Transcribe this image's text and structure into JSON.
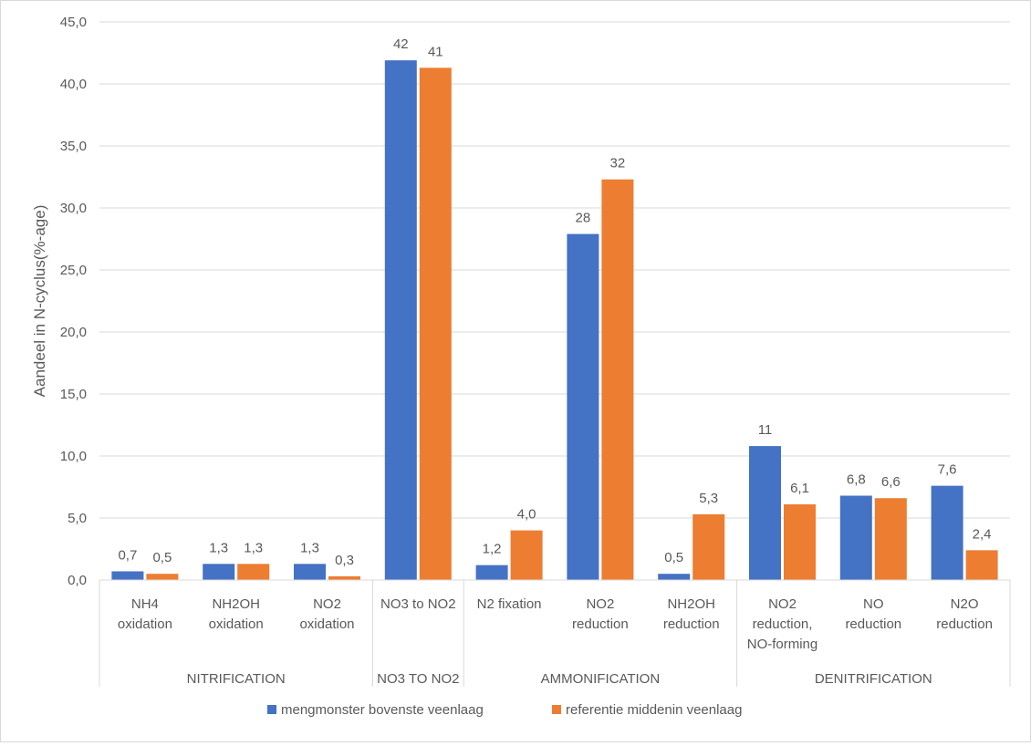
{
  "chart_data": {
    "type": "bar",
    "ylabel": "Aandeel in N-cyclus(%-age)",
    "xlabel": "",
    "ylim": [
      0,
      45
    ],
    "ytick_step": 5,
    "yticks": [
      "0,0",
      "5,0",
      "10,0",
      "15,0",
      "20,0",
      "25,0",
      "30,0",
      "35,0",
      "40,0",
      "45,0"
    ],
    "grid": true,
    "legend_position": "bottom",
    "groups": [
      {
        "label": "NITRIFICATION",
        "size": 3
      },
      {
        "label": "NO3 TO NO2",
        "size": 1
      },
      {
        "label": "AMMONIFICATION",
        "size": 3
      },
      {
        "label": "DENITRIFICATION",
        "size": 3
      }
    ],
    "categories": [
      [
        "NH4",
        "oxidation"
      ],
      [
        "NH2OH",
        "oxidation"
      ],
      [
        "NO2",
        "oxidation"
      ],
      [
        "NO3 to NO2"
      ],
      [
        "N2 fixation"
      ],
      [
        "NO2",
        "reduction"
      ],
      [
        "NH2OH",
        "reduction"
      ],
      [
        "NO2",
        "reduction,",
        "NO-forming"
      ],
      [
        "NO",
        "reduction"
      ],
      [
        "N2O",
        "reduction"
      ]
    ],
    "series": [
      {
        "name": "mengmonster bovenste veenlaag",
        "color": "#4472c4",
        "values": [
          0.7,
          1.3,
          1.3,
          41.9,
          1.2,
          27.9,
          0.5,
          10.8,
          6.8,
          7.6
        ],
        "labels": [
          "0,7",
          "1,3",
          "1,3",
          "42",
          "1,2",
          "28",
          "0,5",
          "11",
          "6,8",
          "7,6"
        ]
      },
      {
        "name": "referentie middenin veenlaag",
        "color": "#ed7d31",
        "values": [
          0.5,
          1.3,
          0.3,
          41.3,
          4.0,
          32.3,
          5.3,
          6.1,
          6.6,
          2.4
        ],
        "labels": [
          "0,5",
          "1,3",
          "0,3",
          "41",
          "4,0",
          "32",
          "5,3",
          "6,1",
          "6,6",
          "2,4"
        ]
      }
    ]
  }
}
